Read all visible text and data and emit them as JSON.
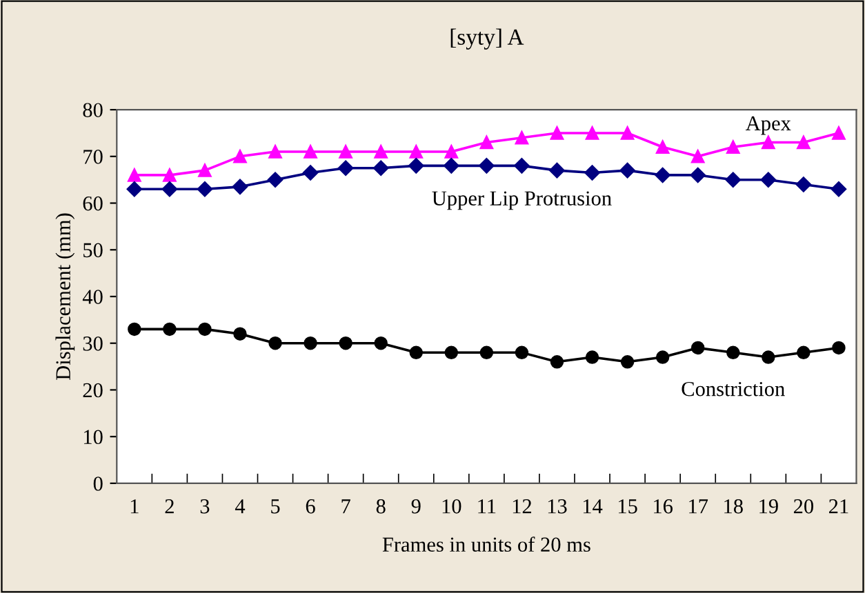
{
  "chart_data": {
    "type": "line",
    "title": "[syty] A",
    "xlabel": "Frames in units of 20 ms",
    "ylabel": "Displacement (mm)",
    "categories": [
      "1",
      "2",
      "3",
      "4",
      "5",
      "6",
      "7",
      "8",
      "9",
      "10",
      "11",
      "12",
      "13",
      "14",
      "15",
      "16",
      "17",
      "18",
      "19",
      "20",
      "21"
    ],
    "series": [
      {
        "name": "Apex",
        "color": "#ff00ff",
        "marker": "triangle",
        "values": [
          66,
          66,
          67,
          70,
          71,
          71,
          71,
          71,
          71,
          71,
          73,
          74,
          75,
          75,
          75,
          72,
          70,
          72,
          73,
          73,
          75
        ]
      },
      {
        "name": "Upper Lip Protrusion",
        "color": "#000080",
        "marker": "diamond",
        "values": [
          63,
          63,
          63,
          63.5,
          65,
          66.5,
          67.5,
          67.5,
          68,
          68,
          68,
          68,
          67,
          66.5,
          67,
          66,
          66,
          65,
          65,
          64,
          63
        ]
      },
      {
        "name": "Constriction",
        "color": "#000000",
        "marker": "circle",
        "values": [
          33,
          33,
          33,
          32,
          30,
          30,
          30,
          30,
          28,
          28,
          28,
          28,
          26,
          27,
          26,
          27,
          29,
          28,
          27,
          28,
          29
        ]
      }
    ],
    "ylim": [
      0,
      80
    ],
    "yticks": [
      0,
      10,
      20,
      30,
      40,
      50,
      60,
      70,
      80
    ],
    "grid": false,
    "legend": false
  }
}
